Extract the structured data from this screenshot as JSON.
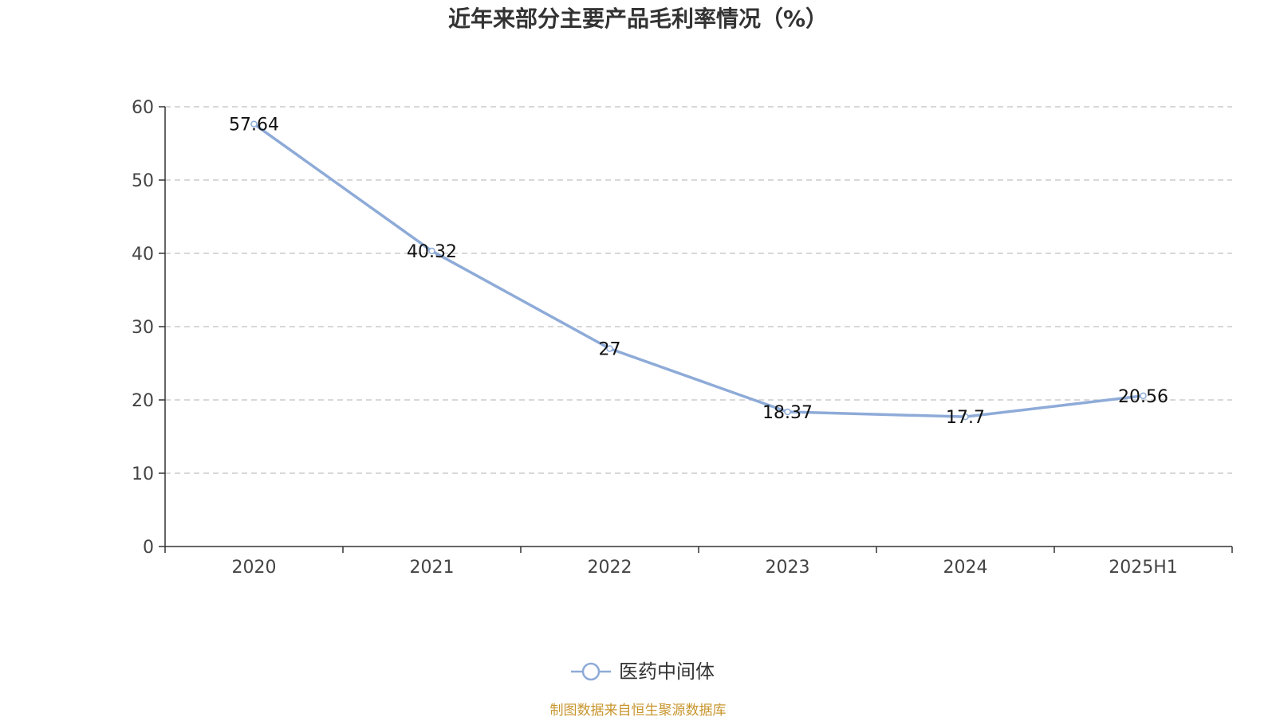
{
  "chart_data": {
    "type": "line",
    "title": "近年来部分主要产品毛利率情况（%）",
    "categories": [
      "2020",
      "2021",
      "2022",
      "2023",
      "2024",
      "2025H1"
    ],
    "series": [
      {
        "name": "医药中间体",
        "values": [
          57.64,
          40.32,
          27,
          18.37,
          17.7,
          20.56
        ],
        "color": "#8eabd8"
      }
    ],
    "ylim": [
      0,
      60
    ],
    "yticks": [
      0,
      10,
      20,
      30,
      40,
      50,
      60
    ],
    "grid": true,
    "legend_position": "bottom-center"
  },
  "source_note": "制图数据来自恒生聚源数据库"
}
